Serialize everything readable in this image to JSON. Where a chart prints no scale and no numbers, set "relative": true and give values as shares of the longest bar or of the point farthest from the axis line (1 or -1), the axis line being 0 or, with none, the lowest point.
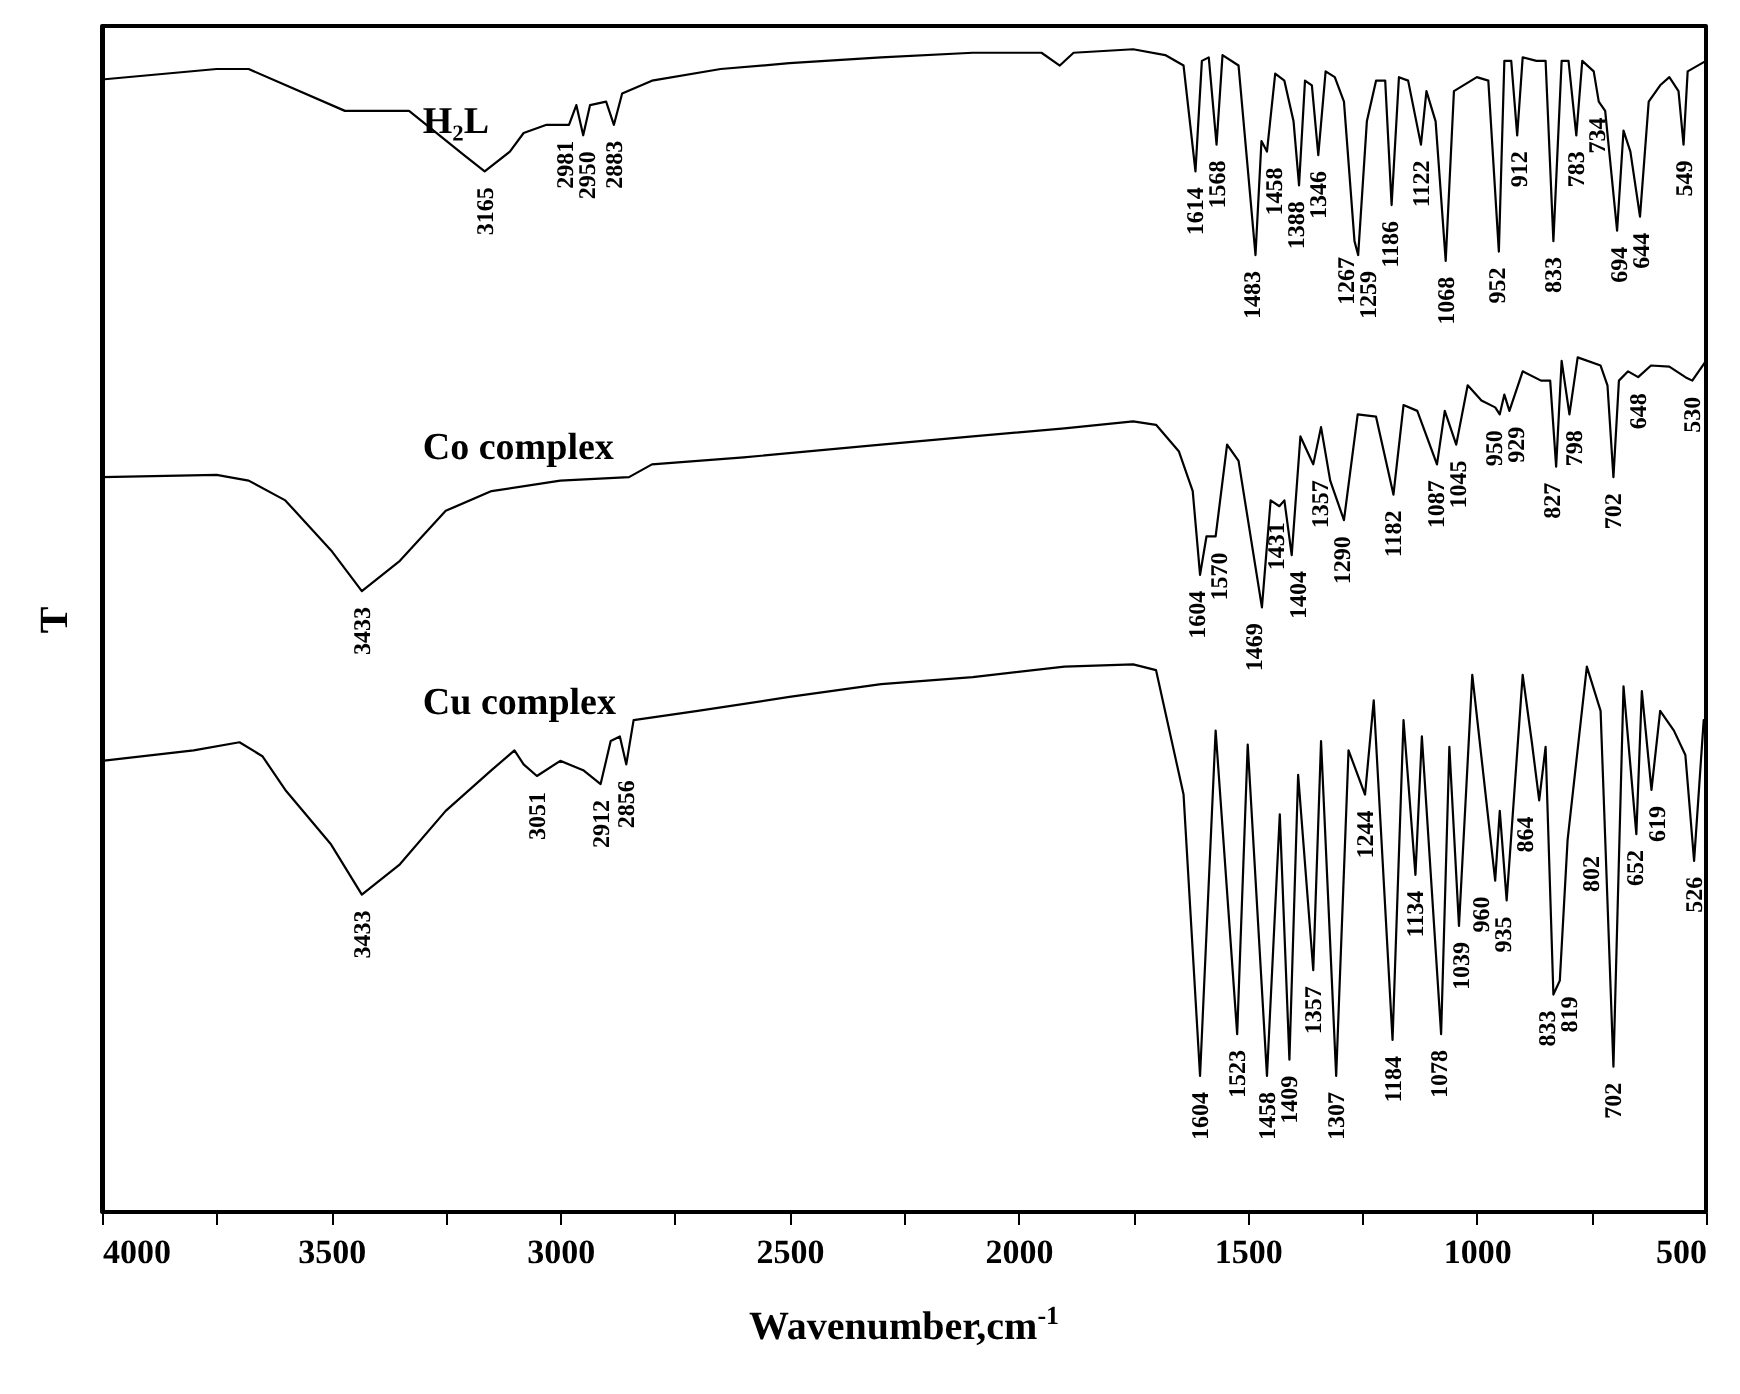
{
  "chart_data": {
    "type": "line",
    "relative": true,
    "xlabel": "Wavenumber,cm$^{-1}$",
    "ylabel": "T",
    "xlim": [
      4000,
      500
    ],
    "xticks": [
      4000,
      {
        "value": 3750,
        "label": null
      },
      3500,
      {
        "value": 3250,
        "label": null
      },
      3000,
      {
        "value": 2750,
        "label": null
      },
      2500,
      {
        "value": 2250,
        "label": null
      },
      2000,
      {
        "value": 1750,
        "label": null
      },
      1500,
      {
        "value": 1250,
        "label": null
      },
      1000,
      {
        "value": 750,
        "label": null
      },
      500
    ],
    "tick_labels": "x",
    "line_style": "solid",
    "series": [
      {
        "name": "H₂L",
        "color": "#000000",
        "x": [
          4000,
          3750,
          3680,
          3470,
          3330,
          3210,
          3165,
          3110,
          3080,
          3030,
          2981,
          2965,
          2950,
          2935,
          2900,
          2883,
          2865,
          2800,
          2650,
          2500,
          2300,
          2100,
          1950,
          1910,
          1880,
          1750,
          1680,
          1640,
          1614,
          1600,
          1585,
          1568,
          1555,
          1520,
          1483,
          1470,
          1458,
          1440,
          1420,
          1400,
          1388,
          1375,
          1360,
          1346,
          1330,
          1310,
          1290,
          1267,
          1259,
          1240,
          1220,
          1200,
          1186,
          1170,
          1150,
          1122,
          1110,
          1090,
          1068,
          1050,
          1000,
          975,
          952,
          940,
          925,
          912,
          900,
          870,
          850,
          833,
          815,
          800,
          783,
          770,
          745,
          734,
          720,
          694,
          680,
          665,
          644,
          625,
          600,
          580,
          560,
          549,
          540,
          500
        ],
        "values": [
          0.974,
          0.983,
          0.983,
          0.947,
          0.947,
          0.909,
          0.895,
          0.912,
          0.928,
          0.935,
          0.935,
          0.952,
          0.926,
          0.952,
          0.955,
          0.935,
          0.962,
          0.973,
          0.983,
          0.988,
          0.993,
          0.997,
          0.997,
          0.986,
          0.997,
          1,
          0.995,
          0.986,
          0.895,
          0.99,
          0.993,
          0.918,
          0.995,
          0.986,
          0.823,
          0.921,
          0.912,
          0.979,
          0.973,
          0.938,
          0.883,
          0.973,
          0.969,
          0.909,
          0.981,
          0.976,
          0.955,
          0.835,
          0.823,
          0.938,
          0.973,
          0.973,
          0.866,
          0.976,
          0.973,
          0.918,
          0.964,
          0.938,
          0.818,
          0.964,
          0.976,
          0.973,
          0.826,
          0.99,
          0.99,
          0.926,
          0.993,
          0.99,
          0.99,
          0.835,
          0.99,
          0.99,
          0.926,
          0.99,
          0.981,
          0.955,
          0.947,
          0.844,
          0.93,
          0.912,
          0.856,
          0.955,
          0.969,
          0.976,
          0.964,
          0.918,
          0.981,
          0.99
        ]
      },
      {
        "name": "Co complex",
        "color": "#000000",
        "x": [
          4000,
          3750,
          3680,
          3600,
          3500,
          3433,
          3350,
          3250,
          3150,
          3000,
          2850,
          2800,
          2600,
          2300,
          2100,
          1900,
          1750,
          1700,
          1650,
          1620,
          1604,
          1590,
          1570,
          1545,
          1520,
          1469,
          1450,
          1431,
          1420,
          1404,
          1385,
          1370,
          1357,
          1340,
          1320,
          1290,
          1260,
          1220,
          1182,
          1160,
          1130,
          1087,
          1070,
          1045,
          1020,
          990,
          960,
          950,
          940,
          929,
          900,
          860,
          840,
          827,
          815,
          798,
          780,
          730,
          715,
          702,
          690,
          670,
          648,
          620,
          580,
          545,
          530,
          500
        ],
        "values": [
          0.632,
          0.634,
          0.629,
          0.612,
          0.569,
          0.534,
          0.56,
          0.603,
          0.62,
          0.629,
          0.632,
          0.643,
          0.649,
          0.66,
          0.667,
          0.674,
          0.68,
          0.677,
          0.654,
          0.62,
          0.548,
          0.581,
          0.581,
          0.66,
          0.646,
          0.52,
          0.612,
          0.607,
          0.612,
          0.565,
          0.667,
          0.654,
          0.643,
          0.675,
          0.629,
          0.595,
          0.686,
          0.684,
          0.617,
          0.694,
          0.689,
          0.643,
          0.689,
          0.66,
          0.711,
          0.698,
          0.692,
          0.686,
          0.703,
          0.689,
          0.723,
          0.715,
          0.715,
          0.641,
          0.732,
          0.686,
          0.735,
          0.728,
          0.711,
          0.632,
          0.715,
          0.723,
          0.718,
          0.728,
          0.727,
          0.718,
          0.715,
          0.732
        ]
      },
      {
        "name": "Cu complex",
        "color": "#000000",
        "x": [
          4000,
          3800,
          3700,
          3650,
          3600,
          3500,
          3433,
          3350,
          3250,
          3150,
          3100,
          3080,
          3051,
          3000,
          2950,
          2912,
          2890,
          2870,
          2856,
          2840,
          2700,
          2500,
          2300,
          2100,
          1900,
          1750,
          1700,
          1640,
          1604,
          1570,
          1523,
          1500,
          1458,
          1430,
          1409,
          1390,
          1357,
          1340,
          1307,
          1280,
          1244,
          1225,
          1184,
          1160,
          1134,
          1120,
          1078,
          1060,
          1039,
          1010,
          960,
          950,
          935,
          900,
          880,
          864,
          850,
          833,
          819,
          802,
          760,
          730,
          702,
          680,
          652,
          640,
          619,
          600,
          570,
          545,
          526,
          505
        ],
        "values": [
          0.388,
          0.397,
          0.404,
          0.392,
          0.363,
          0.316,
          0.273,
          0.299,
          0.345,
          0.38,
          0.397,
          0.385,
          0.375,
          0.388,
          0.38,
          0.368,
          0.405,
          0.409,
          0.385,
          0.423,
          0.431,
          0.443,
          0.454,
          0.46,
          0.469,
          0.471,
          0.466,
          0.359,
          0.117,
          0.414,
          0.153,
          0.402,
          0.117,
          0.342,
          0.131,
          0.376,
          0.208,
          0.405,
          0.117,
          0.397,
          0.359,
          0.44,
          0.148,
          0.423,
          0.29,
          0.409,
          0.153,
          0.4,
          0.246,
          0.462,
          0.285,
          0.345,
          0.268,
          0.462,
          0.404,
          0.354,
          0.4,
          0.187,
          0.199,
          0.32,
          0.469,
          0.431,
          0.125,
          0.452,
          0.325,
          0.448,
          0.363,
          0.431,
          0.414,
          0.393,
          0.302,
          0.423
        ]
      }
    ],
    "annotations": [
      {
        "text": "3165",
        "x": 3165,
        "y": 0.895
      },
      {
        "text": "2981",
        "x": 2981,
        "y": 0.935
      },
      {
        "text": "2950",
        "x": 2950,
        "y": 0.926
      },
      {
        "text": "2883",
        "x": 2883,
        "y": 0.935
      },
      {
        "text": "1614",
        "x": 1614,
        "y": 0.895
      },
      {
        "text": "1568",
        "x": 1568,
        "y": 0.918
      },
      {
        "text": "1483",
        "x": 1483,
        "y": 0.823
      },
      {
        "text": "1458",
        "x": 1458,
        "y": 0.912
      },
      {
        "text": "1388",
        "x": 1388,
        "y": 0.883
      },
      {
        "text": "1346",
        "x": 1346,
        "y": 0.909
      },
      {
        "text": "1267",
        "x": 1267,
        "y": 0.835
      },
      {
        "text": "1259",
        "x": 1259,
        "y": 0.823
      },
      {
        "text": "1186",
        "x": 1186,
        "y": 0.866
      },
      {
        "text": "1122",
        "x": 1122,
        "y": 0.918
      },
      {
        "text": "1068",
        "x": 1068,
        "y": 0.818
      },
      {
        "text": "952",
        "x": 952,
        "y": 0.826
      },
      {
        "text": "912",
        "x": 912,
        "y": 0.926
      },
      {
        "text": "833",
        "x": 833,
        "y": 0.835
      },
      {
        "text": "783",
        "x": 783,
        "y": 0.926
      },
      {
        "text": "734",
        "x": 734,
        "y": 0.955
      },
      {
        "text": "694",
        "x": 694,
        "y": 0.844
      },
      {
        "text": "644",
        "x": 644,
        "y": 0.856
      },
      {
        "text": "549",
        "x": 549,
        "y": 0.918
      },
      {
        "text": "3433",
        "x": 3433,
        "y": 0.534
      },
      {
        "text": "1604",
        "x": 1604,
        "y": 0.548
      },
      {
        "text": "1570",
        "x": 1570,
        "y": 0.581
      },
      {
        "text": "1469",
        "x": 1469,
        "y": 0.52
      },
      {
        "text": "1431",
        "x": 1431,
        "y": 0.607
      },
      {
        "text": "1404",
        "x": 1404,
        "y": 0.565
      },
      {
        "text": "1357",
        "x": 1357,
        "y": 0.643
      },
      {
        "text": "1290",
        "x": 1290,
        "y": 0.595
      },
      {
        "text": "1182",
        "x": 1182,
        "y": 0.617
      },
      {
        "text": "1087",
        "x": 1087,
        "y": 0.643
      },
      {
        "text": "1045",
        "x": 1045,
        "y": 0.66
      },
      {
        "text": "950",
        "x": 950,
        "y": 0.686
      },
      {
        "text": "929",
        "x": 929,
        "y": 0.689
      },
      {
        "text": "827",
        "x": 827,
        "y": 0.641
      },
      {
        "text": "798",
        "x": 798,
        "y": 0.686
      },
      {
        "text": "702",
        "x": 702,
        "y": 0.632
      },
      {
        "text": "648",
        "x": 648,
        "y": 0.718
      },
      {
        "text": "530",
        "x": 530,
        "y": 0.715
      },
      {
        "text": "3433",
        "x": 3433,
        "y": 0.273
      },
      {
        "text": "3051",
        "x": 3051,
        "y": 0.375
      },
      {
        "text": "2912",
        "x": 2912,
        "y": 0.368
      },
      {
        "text": "2856",
        "x": 2856,
        "y": 0.385
      },
      {
        "text": "1604",
        "x": 1604,
        "y": 0.117
      },
      {
        "text": "1523",
        "x": 1523,
        "y": 0.153
      },
      {
        "text": "1458",
        "x": 1458,
        "y": 0.117
      },
      {
        "text": "1409",
        "x": 1409,
        "y": 0.131
      },
      {
        "text": "1357",
        "x": 1357,
        "y": 0.208
      },
      {
        "text": "1307",
        "x": 1307,
        "y": 0.117
      },
      {
        "text": "1244",
        "x": 1244,
        "y": 0.359
      },
      {
        "text": "1184",
        "x": 1184,
        "y": 0.148
      },
      {
        "text": "1134",
        "x": 1134,
        "y": 0.29
      },
      {
        "text": "1078",
        "x": 1078,
        "y": 0.153
      },
      {
        "text": "1039",
        "x": 1039,
        "y": 0.246
      },
      {
        "text": "960",
        "x": 960,
        "y": 0.285
      },
      {
        "text": "935",
        "x": 935,
        "y": 0.268
      },
      {
        "text": "864",
        "x": 864,
        "y": 0.354
      },
      {
        "text": "833",
        "x": 833,
        "y": 0.187
      },
      {
        "text": "819",
        "x": 819,
        "y": 0.199
      },
      {
        "text": "802",
        "x": 802,
        "y": 0.32
      },
      {
        "text": "702",
        "x": 702,
        "y": 0.125
      },
      {
        "text": "652",
        "x": 652,
        "y": 0.325
      },
      {
        "text": "619",
        "x": 619,
        "y": 0.363
      },
      {
        "text": "526",
        "x": 526,
        "y": 0.302
      }
    ]
  }
}
